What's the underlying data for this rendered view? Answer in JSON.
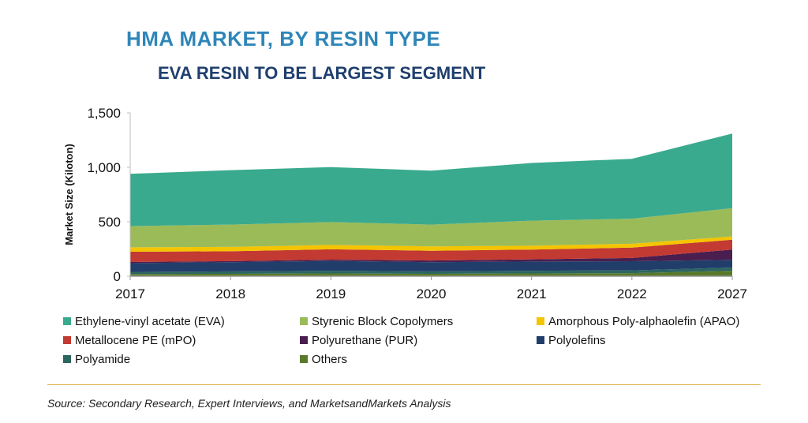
{
  "header": {
    "title": "HMA MARKET, BY RESIN TYPE",
    "subtitle": "EVA RESIN TO BE LARGEST SEGMENT"
  },
  "source": "Source: Secondary Research, Expert Interviews, and MarketsandMarkets Analysis",
  "colors": {
    "title": "#2e86b8",
    "subtitle": "#1f3f6e",
    "divider": "#e0b24a"
  },
  "chart_data": {
    "type": "area",
    "stacked": true,
    "ylabel": "Market Size (Kiloton)",
    "xlabel": "",
    "ylim": [
      0,
      1500
    ],
    "yticks": [
      0,
      500,
      1000,
      1500
    ],
    "ytick_labels": [
      "0",
      "500",
      "1,000",
      "1,500"
    ],
    "categories": [
      "2017",
      "2018",
      "2019",
      "2020",
      "2021",
      "2022",
      "2027"
    ],
    "legend_position": "bottom",
    "grid": false,
    "series": [
      {
        "name": "Others",
        "color": "#5a7a2a",
        "values": [
          20,
          22,
          25,
          22,
          25,
          28,
          50
        ]
      },
      {
        "name": "Polyamide",
        "color": "#2c6660",
        "values": [
          20,
          22,
          25,
          22,
          25,
          25,
          30
        ]
      },
      {
        "name": "Polyolefins",
        "color": "#213e6b",
        "values": [
          80,
          85,
          90,
          85,
          85,
          85,
          70
        ]
      },
      {
        "name": "Polyurethane (PUR)",
        "color": "#4a1e4e",
        "values": [
          10,
          10,
          12,
          15,
          20,
          30,
          95
        ]
      },
      {
        "name": "Metallocene PE (mPO)",
        "color": "#c33a32",
        "values": [
          95,
          90,
          95,
          90,
          90,
          95,
          90
        ]
      },
      {
        "name": "Amorphous Poly-alphaolefin (APAO)",
        "color": "#f5c400",
        "values": [
          40,
          40,
          40,
          40,
          35,
          35,
          30
        ]
      },
      {
        "name": "Styrenic Block Copolymers",
        "color": "#9bbb59",
        "values": [
          195,
          205,
          210,
          200,
          230,
          230,
          260
        ]
      },
      {
        "name": "Ethylene-vinyl acetate (EVA)",
        "color": "#3aaa8e",
        "values": [
          480,
          500,
          505,
          495,
          530,
          550,
          685
        ]
      }
    ],
    "legend_order": [
      "Ethylene-vinyl acetate (EVA)",
      "Styrenic Block Copolymers",
      "Amorphous Poly-alphaolefin (APAO)",
      "Metallocene PE (mPO)",
      "Polyurethane (PUR)",
      "Polyolefins",
      "Polyamide",
      "Others"
    ]
  }
}
